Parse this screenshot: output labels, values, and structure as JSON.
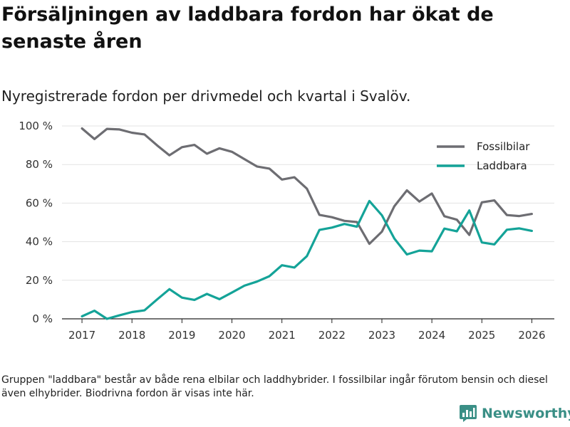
{
  "header": {
    "title": "Försäljningen av laddbara fordon har ökat de senaste åren",
    "subtitle": "Nyregistrerade fordon per drivmedel och kvartal i Svalöv."
  },
  "footer": {
    "note": "Gruppen \"laddbara\" består av både rena elbilar och laddhybrider. I fossilbilar ingår förutom bensin och diesel även elhybrider. Biodrivna fordon är visas inte här.",
    "brand": "Newsworthy"
  },
  "colors": {
    "fossil": "#6d6d72",
    "laddbara": "#14a398",
    "brand": "#3a8f86"
  },
  "chart_data": {
    "type": "line",
    "title": "Försäljningen av laddbara fordon har ökat de senaste åren",
    "xlabel": "",
    "ylabel": "",
    "xlim": [
      2016.6,
      2026.45
    ],
    "ylim": [
      0,
      100
    ],
    "x_ticks": [
      2017,
      2018,
      2019,
      2020,
      2021,
      2022,
      2023,
      2024,
      2025,
      2026
    ],
    "x_tick_labels": [
      "2017",
      "2018",
      "2019",
      "2020",
      "2021",
      "2022",
      "2023",
      "2024",
      "2025",
      "2026"
    ],
    "y_ticks": [
      0,
      20,
      40,
      60,
      80,
      100
    ],
    "y_tick_labels": [
      "0 %",
      "20 %",
      "40 %",
      "60 %",
      "80 %",
      "100 %"
    ],
    "grid": true,
    "legend_position": "top-right",
    "x": [
      2017.0,
      2017.25,
      2017.5,
      2017.75,
      2018.0,
      2018.25,
      2018.5,
      2018.75,
      2019.0,
      2019.25,
      2019.5,
      2019.75,
      2020.0,
      2020.25,
      2020.5,
      2020.75,
      2021.0,
      2021.25,
      2021.5,
      2021.75,
      2022.0,
      2022.25,
      2022.5,
      2022.75,
      2023.0,
      2023.25,
      2023.5,
      2023.75,
      2024.0,
      2024.25,
      2024.5,
      2024.75,
      2025.0,
      2025.25,
      2025.5,
      2025.75,
      2026.0
    ],
    "series": [
      {
        "name": "Fossilbilar",
        "color": "#6d6d72",
        "values": [
          98.7,
          93.2,
          98.5,
          98.2,
          96.5,
          95.6,
          90.0,
          84.8,
          89.0,
          90.2,
          85.6,
          88.4,
          86.6,
          82.8,
          79.0,
          77.9,
          72.2,
          73.4,
          67.5,
          53.9,
          52.7,
          50.8,
          50.2,
          38.9,
          45.2,
          58.4,
          66.6,
          60.8,
          65.0,
          53.2,
          51.4,
          43.5,
          60.4,
          61.4,
          53.8,
          53.3,
          54.4
        ]
      },
      {
        "name": "Laddbara",
        "color": "#14a398",
        "values": [
          1.3,
          4.2,
          0.0,
          1.8,
          3.5,
          4.4,
          10.0,
          15.4,
          11.0,
          9.8,
          12.9,
          10.2,
          13.6,
          17.2,
          19.3,
          22.1,
          27.8,
          26.6,
          32.5,
          46.1,
          47.3,
          49.2,
          47.8,
          61.1,
          53.7,
          41.6,
          33.4,
          35.4,
          35.0,
          46.8,
          45.4,
          56.2,
          39.6,
          38.6,
          46.2,
          46.9,
          45.6
        ]
      }
    ]
  }
}
